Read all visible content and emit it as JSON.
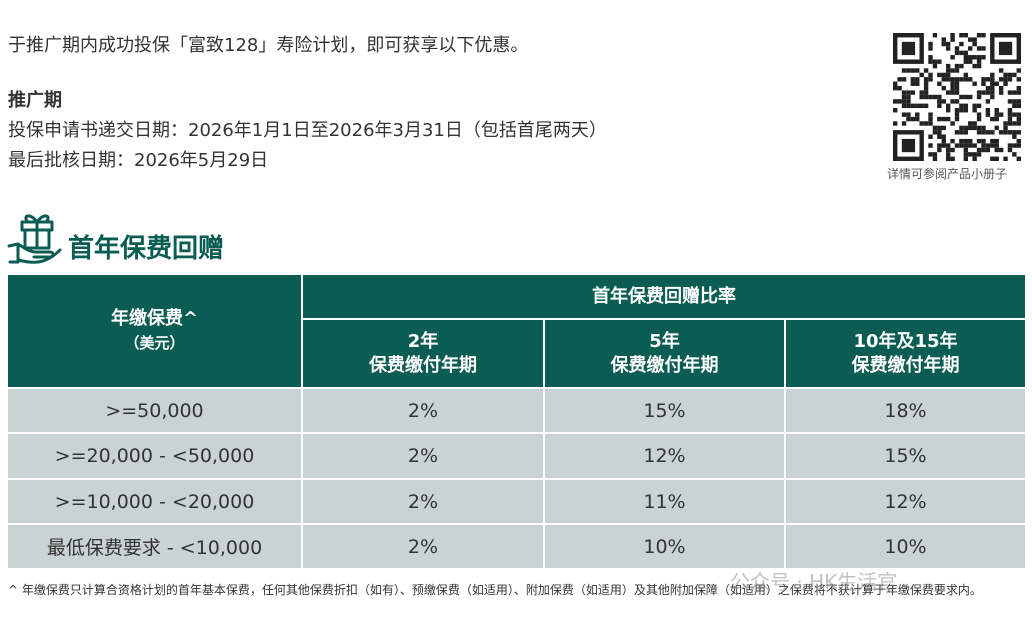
{
  "intro": "于推广期内成功投保「富致128」寿险计划，即可获享以下优惠。",
  "promo": {
    "heading": "推广期",
    "lines": [
      "投保申请书递交日期：2026年1月1日至2026年3月31日（包括首尾两天）",
      "最后批核日期：2026年5月29日"
    ]
  },
  "qr_caption": "详情可参阅产品小册子",
  "section_title": "首年保费回赠",
  "table": {
    "corner": [
      "年缴保费^",
      "（美元）"
    ],
    "group_header": "首年保费回赠比率",
    "columns": [
      [
        "2年",
        "保费缴付年期"
      ],
      [
        "5年",
        "保费缴付年期"
      ],
      [
        "10年及15年",
        "保费缴付年期"
      ]
    ],
    "rows": [
      [
        ">=50,000",
        "2%",
        "15%",
        "18%"
      ],
      [
        ">=20,000 - <50,000",
        "2%",
        "12%",
        "15%"
      ],
      [
        ">=10,000 - <20,000",
        "2%",
        "11%",
        "12%"
      ],
      [
        "最低保费要求 - <10,000",
        "2%",
        "10%",
        "10%"
      ]
    ]
  },
  "footnote": "^ 年缴保费只计算合资格计划的首年基本保费，任何其他保费折扣（如有）、预缴保费（如适用）、附加保费（如适用）及其他附加保障（如适用）之保费将不获计算于年缴保费要求内。",
  "watermark": "公众号 · HK生活官"
}
